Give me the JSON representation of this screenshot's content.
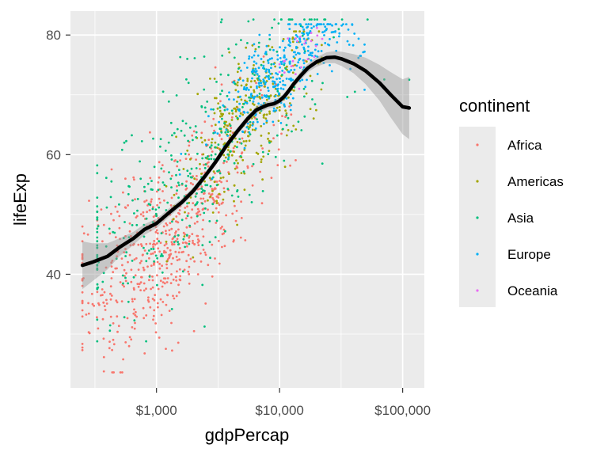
{
  "chart_data": {
    "type": "scatter",
    "xlabel": "gdpPercap",
    "ylabel": "lifeExp",
    "x_scale": "log10",
    "xlim": [
      200,
      150000
    ],
    "ylim": [
      21,
      84
    ],
    "x_ticks": [
      {
        "value": 1000,
        "label": "$1,000"
      },
      {
        "value": 10000,
        "label": "$10,000"
      },
      {
        "value": 100000,
        "label": "$100,000"
      }
    ],
    "y_ticks": [
      {
        "value": 40,
        "label": "40"
      },
      {
        "value": 60,
        "label": "60"
      },
      {
        "value": 80,
        "label": "80"
      }
    ],
    "y_minor_ticks": [
      30,
      50,
      70
    ],
    "grid": true,
    "legend": {
      "title": "continent",
      "placement": "right",
      "entries": [
        "Africa",
        "Americas",
        "Asia",
        "Europe",
        "Oceania"
      ]
    },
    "series": [
      {
        "name": "Africa",
        "color": "#F8766D",
        "x_range": [
          250,
          22000
        ],
        "y_range": [
          23.6,
          76.4
        ],
        "n": 624
      },
      {
        "name": "Americas",
        "color": "#A3A500",
        "x_range": [
          1200,
          42000
        ],
        "y_range": [
          37.6,
          80.6
        ],
        "n": 300
      },
      {
        "name": "Asia",
        "color": "#00BF7D",
        "x_range": [
          330,
          113000
        ],
        "y_range": [
          28.8,
          82.6
        ],
        "n": 396
      },
      {
        "name": "Europe",
        "color": "#00B0F6",
        "x_range": [
          970,
          49000
        ],
        "y_range": [
          43.6,
          81.8
        ],
        "n": 360
      },
      {
        "name": "Oceania",
        "color": "#E76BF3",
        "x_range": [
          10000,
          35000
        ],
        "y_range": [
          69.1,
          81.2
        ],
        "n": 24
      }
    ],
    "smooth": {
      "method": "loess",
      "color": "#000000",
      "ribbon_color": "#999999",
      "x": [
        250,
        300,
        400,
        500,
        650,
        800,
        1000,
        1300,
        1600,
        2000,
        2500,
        3000,
        3700,
        4500,
        5500,
        6500,
        8000,
        9000,
        10000,
        11000,
        12000,
        13000,
        15000,
        17000,
        20000,
        24000,
        28000,
        32000,
        40000,
        50000,
        65000,
        80000,
        100000,
        113000
      ],
      "y": [
        41.5,
        42,
        43,
        44.5,
        46,
        47.5,
        48.5,
        50.5,
        52,
        54,
        56.5,
        58.7,
        61.5,
        63.8,
        66,
        67.5,
        68.3,
        68.5,
        69,
        69.8,
        70.8,
        71.8,
        73.3,
        74.5,
        75.5,
        76.2,
        76.3,
        76,
        75.2,
        74,
        72,
        70,
        68,
        67.8
      ],
      "se": [
        4.0,
        3.2,
        2.2,
        1.5,
        1.1,
        0.9,
        0.8,
        0.7,
        0.6,
        0.6,
        0.6,
        0.6,
        0.6,
        0.6,
        0.6,
        0.6,
        0.6,
        0.6,
        0.6,
        0.6,
        0.6,
        0.6,
        0.7,
        0.7,
        0.8,
        0.9,
        1.0,
        1.2,
        1.6,
        2.2,
        3.0,
        3.8,
        4.6,
        5.2
      ]
    }
  }
}
